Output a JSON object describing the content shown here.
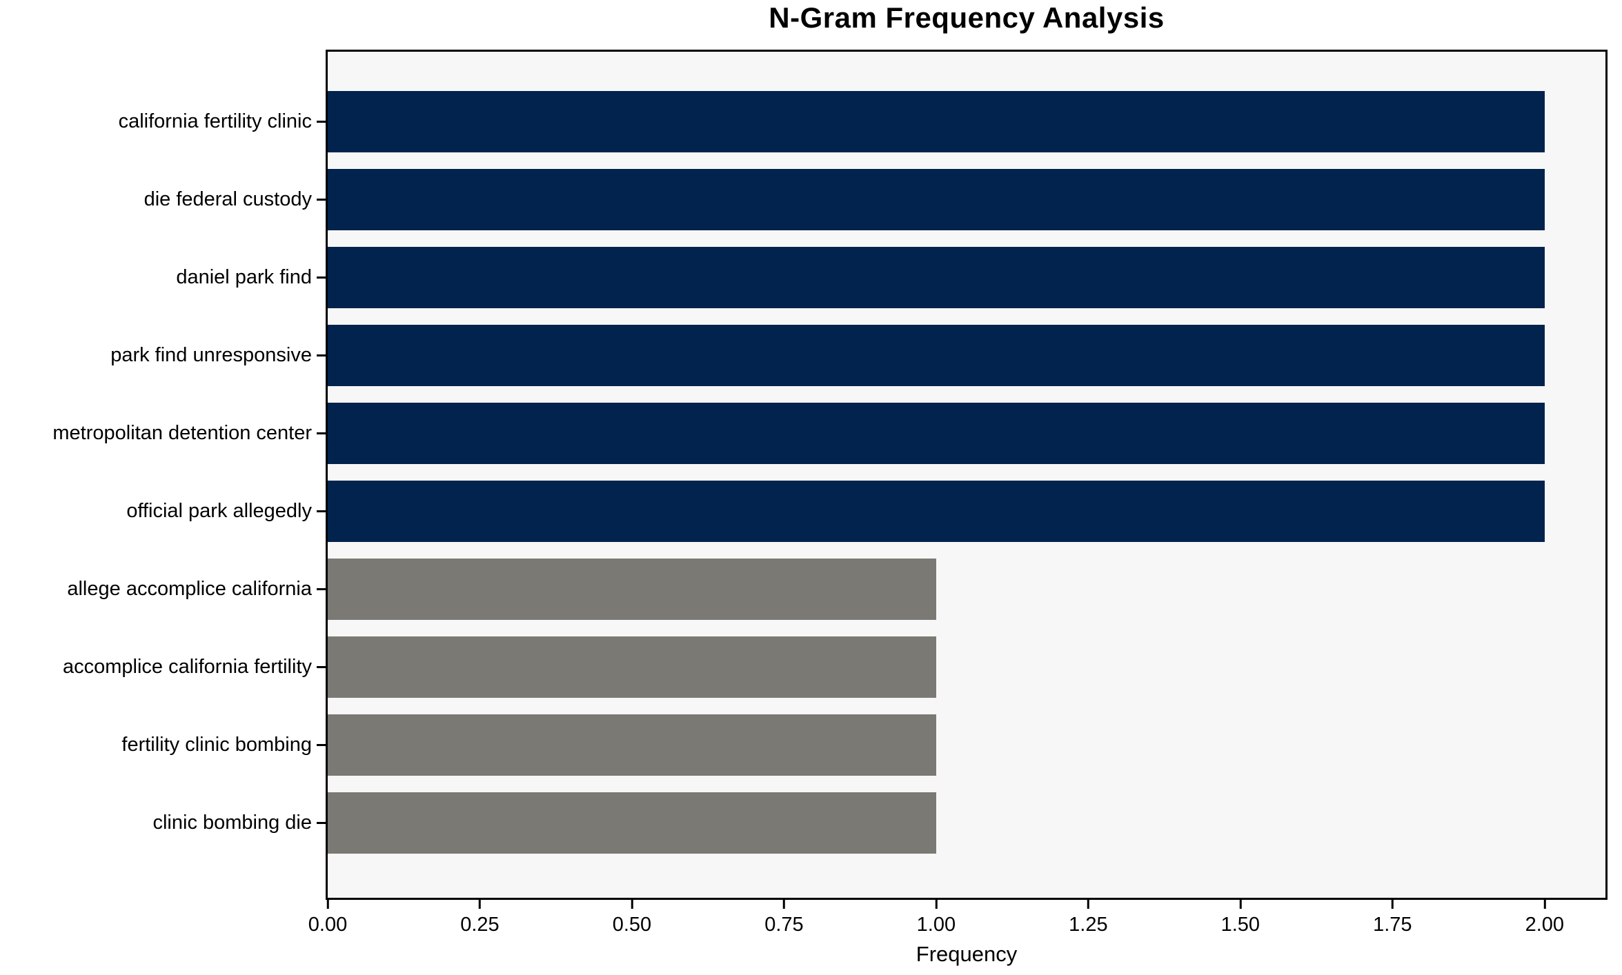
{
  "chart_data": {
    "type": "bar",
    "orientation": "horizontal",
    "title": "N-Gram Frequency Analysis",
    "xlabel": "Frequency",
    "ylabel": "",
    "categories": [
      "california fertility clinic",
      "die federal custody",
      "daniel park find",
      "park find unresponsive",
      "metropolitan detention center",
      "official park allegedly",
      "allege accomplice california",
      "accomplice california fertility",
      "fertility clinic bombing",
      "clinic bombing die"
    ],
    "values": [
      2,
      2,
      2,
      2,
      2,
      2,
      1,
      1,
      1,
      1
    ],
    "bar_colors": [
      "#02234d",
      "#02234d",
      "#02234d",
      "#02234d",
      "#02234d",
      "#02234d",
      "#7b7974",
      "#7b7974",
      "#7b7974",
      "#7b7974"
    ],
    "xticks": [
      0,
      0.25,
      0.5,
      0.75,
      1.0,
      1.25,
      1.5,
      1.75,
      2.0
    ],
    "xtick_labels": [
      "0.00",
      "0.25",
      "0.50",
      "0.75",
      "1.00",
      "1.25",
      "1.50",
      "1.75",
      "2.00"
    ],
    "xlim": [
      0,
      2.1
    ],
    "grid": false,
    "legend": false,
    "colors": {
      "bar_navy": "#02234d",
      "bar_gray": "#7b7974",
      "plot_background": "#f7f7f7",
      "figure_background": "#ffffff",
      "axis": "#000000",
      "text": "#000000"
    }
  }
}
